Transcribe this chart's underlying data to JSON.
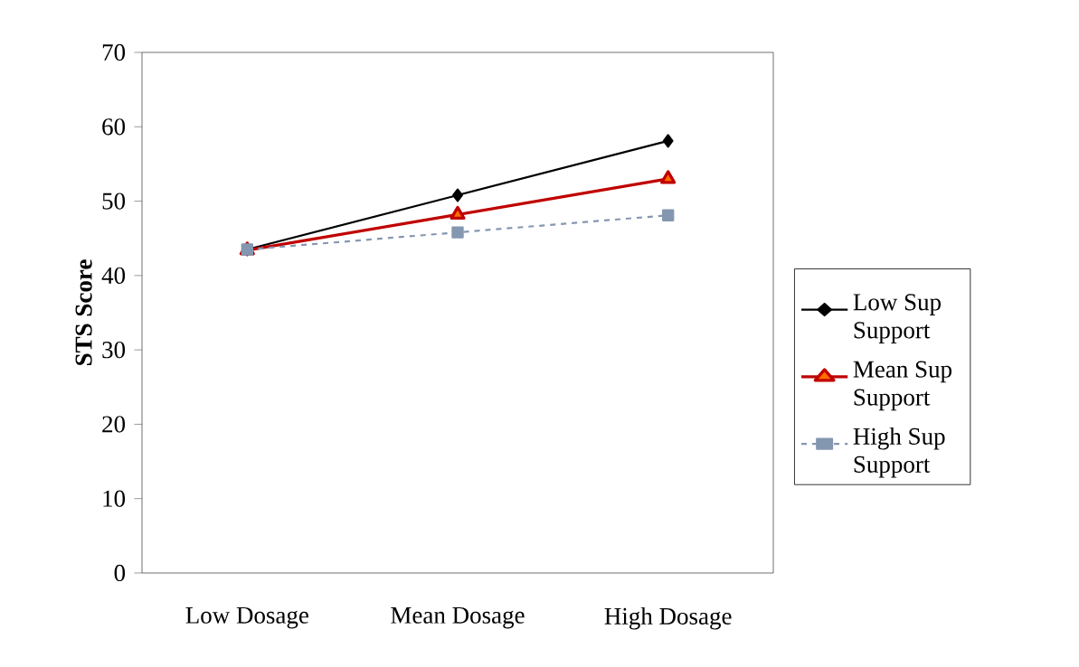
{
  "chart_data": {
    "type": "line",
    "ylabel": "STS Score",
    "categories": [
      "Low Dosage",
      "Mean Dosage",
      "High Dosage"
    ],
    "series": [
      {
        "name": "Low Sup Support",
        "color": "#000000",
        "values": [
          43.5,
          50.8,
          58.1
        ],
        "marker": "diamond",
        "line_style": "solid"
      },
      {
        "name": "Mean Sup Support",
        "color": "#c00000",
        "values": [
          43.4,
          48.2,
          53.0
        ],
        "marker": "triangle",
        "line_style": "solid"
      },
      {
        "name": "High Sup Support",
        "color": "#8497b0",
        "values": [
          43.5,
          45.8,
          48.1
        ],
        "marker": "square",
        "line_style": "dashed"
      }
    ],
    "ylim": [
      0,
      70
    ],
    "yticks": [
      0,
      10,
      20,
      30,
      40,
      50,
      60,
      70
    ],
    "legend": "right"
  }
}
